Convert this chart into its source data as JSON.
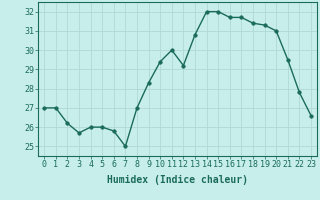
{
  "x": [
    0,
    1,
    2,
    3,
    4,
    5,
    6,
    7,
    8,
    9,
    10,
    11,
    12,
    13,
    14,
    15,
    16,
    17,
    18,
    19,
    20,
    21,
    22,
    23
  ],
  "y": [
    27.0,
    27.0,
    26.2,
    25.7,
    26.0,
    26.0,
    25.8,
    25.0,
    27.0,
    28.3,
    29.4,
    30.0,
    29.2,
    30.8,
    32.0,
    32.0,
    31.7,
    31.7,
    31.4,
    31.3,
    31.0,
    29.5,
    27.8,
    26.6
  ],
  "line_color": "#1a6b5a",
  "marker": "o",
  "markersize": 2.5,
  "linewidth": 1.0,
  "bg_color": "#c8eeec",
  "grid_color": "#b0d8d4",
  "xlabel": "Humidex (Indice chaleur)",
  "xlim": [
    -0.5,
    23.5
  ],
  "ylim": [
    24.5,
    32.5
  ],
  "yticks": [
    25,
    26,
    27,
    28,
    29,
    30,
    31,
    32
  ],
  "xticks": [
    0,
    1,
    2,
    3,
    4,
    5,
    6,
    7,
    8,
    9,
    10,
    11,
    12,
    13,
    14,
    15,
    16,
    17,
    18,
    19,
    20,
    21,
    22,
    23
  ],
  "tick_color": "#1a6b5a",
  "xlabel_fontsize": 7,
  "tick_labelsize": 6
}
